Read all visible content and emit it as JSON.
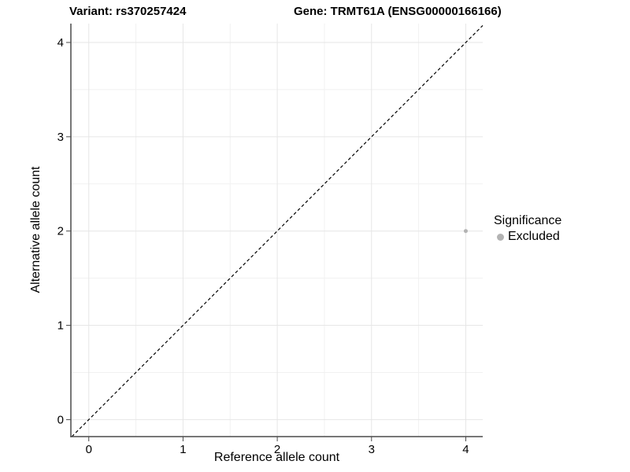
{
  "chart_data": {
    "type": "scatter",
    "titles": {
      "variant": "Variant: rs370257424",
      "gene": "Gene: TRMT61A (ENSG00000166166)"
    },
    "xlabel": "Reference allele count",
    "ylabel": "Alternative allele count",
    "xlim": [
      -0.19,
      4.18
    ],
    "ylim": [
      -0.18,
      4.2
    ],
    "xticks": [
      0,
      1,
      2,
      3,
      4
    ],
    "xtick_labels": [
      "0",
      "1",
      "2",
      "3",
      "4"
    ],
    "yticks": [
      0,
      1,
      2,
      3,
      4
    ],
    "ytick_labels": [
      "0",
      "1",
      "2",
      "3",
      "4"
    ],
    "grid": true,
    "minor_gridlines": true,
    "identity_line": {
      "style": "dashed",
      "color": "#000000",
      "dash": "4 3"
    },
    "points": [
      {
        "x": 4,
        "y": 2,
        "significance": "Excluded",
        "color": "#b3b3b3",
        "radius": 2.5
      }
    ],
    "legend": {
      "title": "Significance",
      "position": "right",
      "items": [
        {
          "label": "Excluded",
          "color": "#b3b3b3"
        }
      ]
    },
    "colors": {
      "background": "#ffffff",
      "grid_major": "#e6e6e6",
      "grid_minor": "#f1f1f1",
      "axis": "#4a4a4a",
      "text": "#000000",
      "point": "#b3b3b3"
    }
  }
}
